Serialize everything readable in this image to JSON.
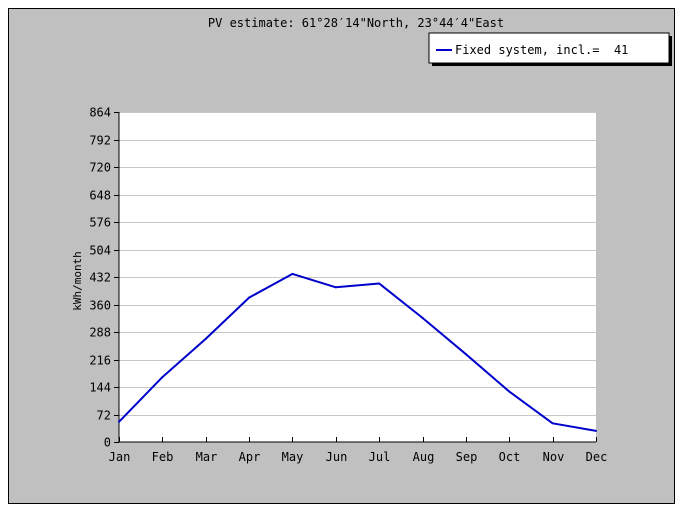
{
  "colors": {
    "frame_bg": "#c0c0c0",
    "plot_bg": "#ffffff",
    "grid": "#c8c8c8",
    "series": "#0000cc",
    "text": "#000000"
  },
  "chart_data": {
    "type": "line",
    "title": "PV estimate:  61°28′14\"North, 23°44′4\"East",
    "ylabel": "kWh/month",
    "xlabel": "",
    "categories": [
      "Jan",
      "Feb",
      "Mar",
      "Apr",
      "May",
      "Jun",
      "Jul",
      "Aug",
      "Sep",
      "Oct",
      "Nov",
      "Dec"
    ],
    "yticks": [
      0,
      72,
      144,
      216,
      288,
      360,
      432,
      504,
      576,
      648,
      720,
      792,
      864
    ],
    "ylim": [
      0,
      864
    ],
    "grid": true,
    "legend_position": "top-right",
    "series": [
      {
        "name": "Fixed system, incl.=  41",
        "values": [
          53,
          170,
          270,
          378,
          440,
          405,
          415,
          325,
          230,
          132,
          49,
          29
        ]
      }
    ]
  }
}
